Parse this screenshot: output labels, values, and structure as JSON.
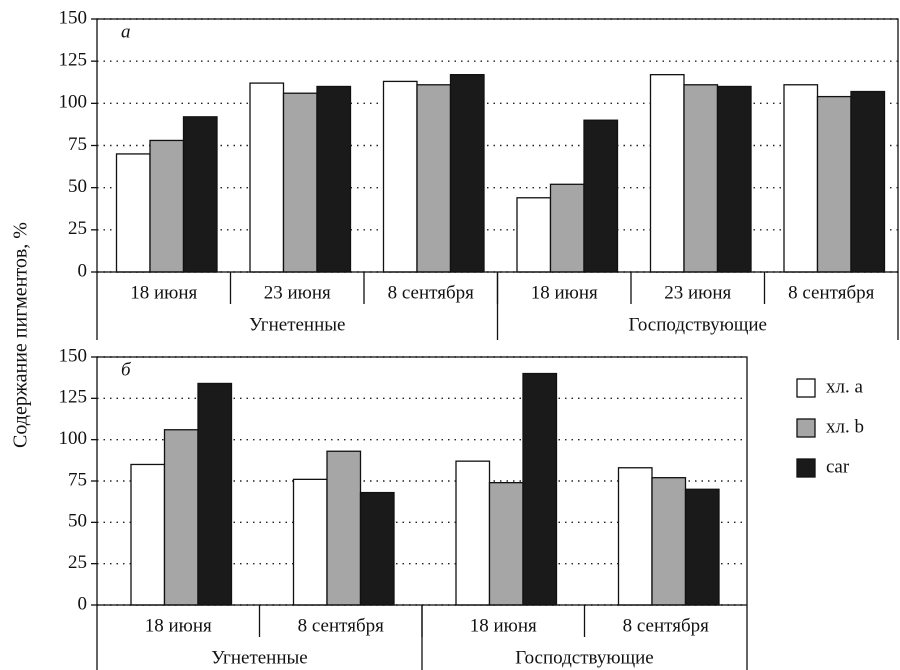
{
  "chart_data": [
    {
      "type": "bar",
      "label": "а",
      "ylabel": "Содержание пигментов, %",
      "categories": [
        "18 июня",
        "23 июня",
        "8 сентября",
        "18 июня",
        "23 июня",
        "8 сентября"
      ],
      "groups": [
        "Угнетенные",
        "Господствующие"
      ],
      "series": [
        {
          "color": "#ffffff",
          "values": [
            70,
            112,
            113,
            44,
            117,
            111
          ]
        },
        {
          "color": "#a6a6a6",
          "values": [
            78,
            106,
            111,
            52,
            111,
            104
          ]
        },
        {
          "color": "#1a1a1a",
          "values": [
            92,
            110,
            117,
            90,
            110,
            107
          ]
        }
      ],
      "ylim": [
        0,
        150
      ],
      "yticks": [
        0,
        25,
        50,
        75,
        100,
        125,
        150
      ],
      "grid": true
    },
    {
      "type": "bar",
      "label": "б",
      "categories": [
        "18 июня",
        "8 сентября",
        "18 июня",
        "8 сентября"
      ],
      "groups": [
        "Угнетенные",
        "Господствующие"
      ],
      "series": [
        {
          "name": "хл. a",
          "color": "#ffffff",
          "values": [
            85,
            76,
            87,
            83
          ]
        },
        {
          "name": "хл. b",
          "color": "#a6a6a6",
          "values": [
            106,
            93,
            74,
            77
          ]
        },
        {
          "name": "car",
          "color": "#1a1a1a",
          "values": [
            134,
            68,
            140,
            70
          ]
        }
      ],
      "ylim": [
        0,
        150
      ],
      "yticks": [
        0,
        25,
        50,
        75,
        100,
        125,
        150
      ],
      "grid": true,
      "legend": "right"
    }
  ]
}
